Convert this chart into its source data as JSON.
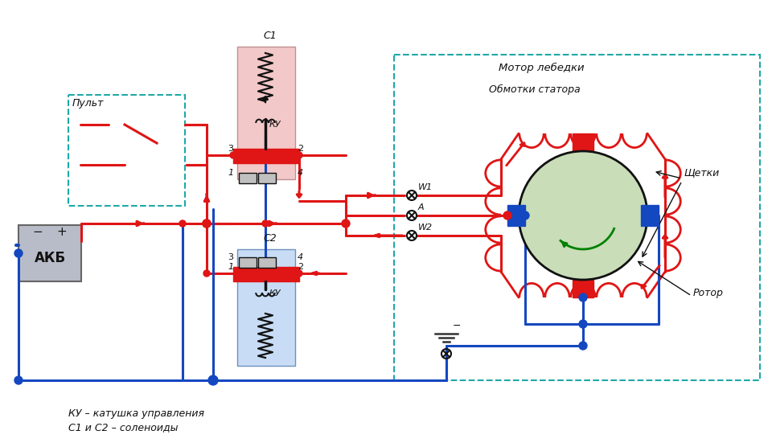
{
  "bg_color": "#ffffff",
  "red": "#e01515",
  "blue": "#1448c0",
  "black": "#111111",
  "pink_fill": "#f2c8c8",
  "light_blue_fill": "#c8ddf5",
  "light_green_fill": "#c8ddb8",
  "gray_fill": "#b8bcc8",
  "teal": "#20a8a8",
  "dark_gray": "#404040",
  "label_pult": "Пульт",
  "label_motor": "Мотор лебедки",
  "label_stator": "Обмотки статора",
  "label_shchetki": "Щетки",
  "label_rotor": "Ротор",
  "label_akb": "АКБ",
  "label_C1": "С1",
  "label_C2": "С2",
  "label_KU": "КУ",
  "label_W1": "W1",
  "label_W2": "W2",
  "label_A": "А",
  "label_legend1": "КУ – катушка управления",
  "label_legend2": "С1 и С2 – соленоиды",
  "lw": 2.2
}
